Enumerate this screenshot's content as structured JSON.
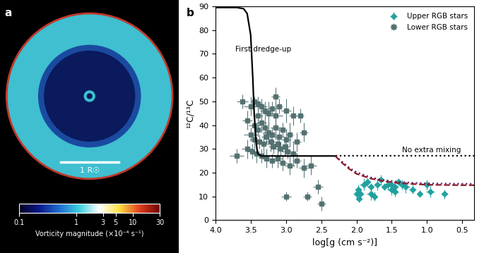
{
  "chart_data": [
    {
      "type": "image",
      "title": "a",
      "scale_bar": "1 R☉",
      "colorbar": {
        "label": "Vorticity magnitude (×10⁻⁴ s⁻¹)",
        "range": [
          0.1,
          30
        ],
        "ticks": [
          0.1,
          1,
          3,
          5,
          10,
          30
        ],
        "log": true
      }
    },
    {
      "type": "scatter",
      "title": "b",
      "x_label": "log[g (cm s⁻²)]",
      "y_label": "¹²C/¹³C",
      "xlim": [
        4.0,
        0.33
      ],
      "xticks": [
        4.0,
        3.5,
        3.0,
        2.5,
        2.0,
        1.5,
        1.0,
        0.5
      ],
      "ylim": [
        0,
        90
      ],
      "yticks": [
        0,
        10,
        20,
        30,
        40,
        50,
        60,
        70,
        80,
        90
      ],
      "legend": "upper right",
      "annotations": [
        {
          "text": "First dredge-up",
          "x": 3.72,
          "y": 72
        },
        {
          "text": "No extra mixing",
          "x": 1.35,
          "y": 29.5
        }
      ],
      "series": [
        {
          "name": "Upper RGB stars",
          "type": "scatter",
          "marker": "diamond",
          "color": "#1a9e9e",
          "x": [
            1.98,
            1.97,
            1.95,
            1.9,
            1.85,
            1.8,
            1.75,
            1.7,
            1.65,
            1.6,
            1.55,
            1.5,
            1.45,
            1.4,
            1.35,
            1.3,
            1.2,
            1.1,
            1.0,
            0.95,
            0.75,
            1.5,
            1.45,
            1.8,
            2.0
          ],
          "values": [
            13,
            9,
            11,
            15,
            16,
            14,
            10,
            15,
            17,
            14,
            15,
            13,
            12,
            16,
            15,
            14,
            13,
            11,
            15,
            12,
            11,
            15,
            14,
            11,
            11
          ],
          "xerr": [
            0.05,
            0.04,
            0.05,
            0.06,
            0.05,
            0.04,
            0.05,
            0.06,
            0.05,
            0.04,
            0.05,
            0.06,
            0.05,
            0.04,
            0.05,
            0.06,
            0.05,
            0.04,
            0.05,
            0.06,
            0.05,
            0.04,
            0.05,
            0.06,
            0.05
          ],
          "yerr": [
            2,
            1.5,
            2,
            2.5,
            2,
            1.5,
            2,
            2.5,
            2,
            1.5,
            2,
            2.5,
            2,
            1.5,
            2,
            2.5,
            2,
            1.5,
            2,
            2.5,
            2,
            1.5,
            2,
            2.5,
            2
          ]
        },
        {
          "name": "Lower RGB stars",
          "type": "scatter",
          "marker": "square",
          "color": "#4d6b6b",
          "x": [
            3.62,
            3.5,
            3.45,
            3.4,
            3.35,
            3.3,
            3.25,
            3.2,
            3.15,
            3.1,
            3.0,
            2.9,
            2.8,
            2.75,
            3.55,
            3.45,
            3.4,
            3.35,
            3.3,
            3.25,
            3.2,
            3.15,
            3.1,
            3.05,
            3.0,
            2.95,
            2.85,
            3.5,
            3.45,
            3.38,
            3.32,
            3.28,
            3.22,
            3.18,
            3.12,
            3.08,
            3.02,
            2.98,
            2.9,
            3.55,
            3.48,
            3.42,
            3.35,
            3.28,
            3.2,
            3.12,
            3.05,
            2.95,
            2.85,
            2.75,
            3.7,
            3.0,
            2.7,
            2.55,
            2.5,
            2.65,
            3.15,
            3.4
          ],
          "values": [
            50,
            48,
            50,
            49,
            48,
            46,
            45,
            47,
            44,
            48,
            46,
            44,
            44,
            37,
            42,
            40,
            38,
            41,
            39,
            37,
            36,
            39,
            35,
            38,
            34,
            36,
            33,
            36,
            34,
            33,
            32,
            35,
            33,
            31,
            32,
            30,
            31,
            29,
            28,
            30,
            29,
            28,
            27,
            26,
            25,
            26,
            24,
            23,
            25,
            22,
            27,
            10,
            10,
            14,
            7,
            23,
            52,
            44
          ],
          "xerr": [
            0.08,
            0.1,
            0.05,
            0.06,
            0.08,
            0.07,
            0.08,
            0.06,
            0.1,
            0.05,
            0.07,
            0.06,
            0.05,
            0.06,
            0.07,
            0.08,
            0.06,
            0.07,
            0.05,
            0.08,
            0.06,
            0.07,
            0.08,
            0.06,
            0.07,
            0.05,
            0.06,
            0.1,
            0.07,
            0.06,
            0.08,
            0.07,
            0.06,
            0.07,
            0.05,
            0.06,
            0.07,
            0.08,
            0.06,
            0.08,
            0.07,
            0.06,
            0.07,
            0.06,
            0.08,
            0.07,
            0.06,
            0.07,
            0.06,
            0.07,
            0.1,
            0.07,
            0.06,
            0.07,
            0.06,
            0.08,
            0.06,
            0.07
          ],
          "yerr": [
            3,
            4,
            2,
            3,
            3,
            4,
            5,
            3,
            4,
            3,
            5,
            4,
            3,
            4,
            4,
            5,
            3,
            4,
            3,
            4,
            3,
            5,
            4,
            3,
            4,
            5,
            4,
            3,
            4,
            3,
            5,
            3,
            4,
            3,
            4,
            3,
            4,
            3,
            5,
            4,
            3,
            4,
            3,
            4,
            3,
            4,
            3,
            4,
            3,
            4,
            3,
            2,
            2,
            3,
            3,
            4,
            4,
            4
          ]
        },
        {
          "type": "line",
          "line_style": "solid",
          "color": "#000000",
          "x": [
            4.0,
            3.7,
            3.6,
            3.55,
            3.5,
            3.47,
            3.45,
            3.42,
            3.4,
            3.35,
            3.0,
            2.5,
            2.3
          ],
          "values": [
            89.5,
            89.5,
            89,
            87,
            78,
            60,
            45,
            32,
            28,
            27,
            27,
            27,
            27
          ]
        },
        {
          "type": "line",
          "line_style": "dotted",
          "color": "#000000",
          "x": [
            2.3,
            0.33
          ],
          "values": [
            27,
            27
          ]
        },
        {
          "type": "line",
          "line_style": "dotted",
          "color": "#6a2a6a",
          "x": [
            2.3,
            2.2,
            2.1,
            2.0,
            1.8,
            1.6,
            1.4,
            1.2,
            1.0,
            0.8,
            0.5,
            0.33
          ],
          "values": [
            27,
            24.5,
            22,
            20.2,
            18,
            16.8,
            16.1,
            15.7,
            15.5,
            15.4,
            15.3,
            15.3
          ]
        },
        {
          "type": "line",
          "line_style": "dashed",
          "color": "#8b1a2b",
          "x": [
            2.3,
            2.2,
            2.1,
            2.0,
            1.8,
            1.6,
            1.4,
            1.2,
            1.0,
            0.8,
            0.5,
            0.33
          ],
          "values": [
            27,
            24,
            21.5,
            19.5,
            17.5,
            16.3,
            15.6,
            15.2,
            14.9,
            14.8,
            14.7,
            14.7
          ]
        }
      ]
    }
  ]
}
